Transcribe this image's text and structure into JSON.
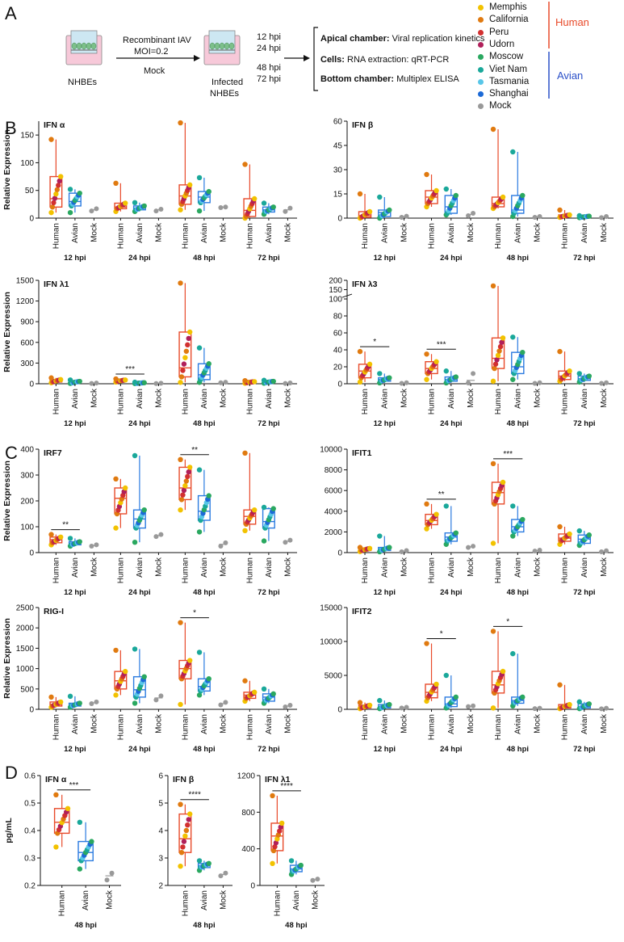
{
  "panel_labels": [
    "A",
    "B",
    "C",
    "D"
  ],
  "schematic": {
    "source_cells": "NHBEs",
    "treatment_line1": "Recombinant IAV",
    "treatment_line2": "MOI=0.2",
    "mock": "Mock",
    "infected_line1": "Infected",
    "infected_line2": "NHBEs",
    "timepoints": [
      "12 hpi",
      "24 hpi",
      "48 hpi",
      "72 hpi"
    ],
    "readouts": [
      {
        "head": "Apical chamber:",
        "text": "Viral replication kinetics"
      },
      {
        "head": "Cells:",
        "text": "RNA extraction: qRT-PCR"
      },
      {
        "head": "Bottom chamber:",
        "text": "Multiplex ELISA"
      }
    ]
  },
  "legend": {
    "strains": [
      {
        "name": "Memphis",
        "color": "#f2c200"
      },
      {
        "name": "California",
        "color": "#e07a10"
      },
      {
        "name": "Peru",
        "color": "#d23030"
      },
      {
        "name": "Udorn",
        "color": "#b0205a"
      },
      {
        "name": "Moscow",
        "color": "#2aa860"
      },
      {
        "name": "Viet Nam",
        "color": "#1aa89a"
      },
      {
        "name": "Tasmania",
        "color": "#58c6e8"
      },
      {
        "name": "Shanghai",
        "color": "#1c6ad6"
      },
      {
        "name": "Mock",
        "color": "#999999"
      }
    ],
    "group_human": "Human",
    "group_avian": "Avian",
    "human_color": "#e84a2a",
    "avian_color": "#2b50c8"
  },
  "colors": {
    "human_box": "#e84a2a",
    "avian_box": "#2b7be0",
    "mock": "#999999"
  },
  "chart_data": [
    {
      "id": "B1",
      "type": "box",
      "title": "IFN α",
      "ylabel": "Relative Expression",
      "ylim": [
        0,
        175
      ],
      "yticks": [
        0,
        50,
        100,
        150
      ],
      "groups": [
        "Human",
        "Avian",
        "Mock"
      ],
      "timepoints": [
        "12 hpi",
        "24 hpi",
        "48 hpi",
        "72 hpi"
      ],
      "boxes": [
        [
          [
            10,
            20,
            35,
            75,
            142
          ],
          [
            10,
            22,
            30,
            45,
            52
          ],
          [
            13,
            14,
            15,
            16,
            17
          ]
        ],
        [
          [
            12,
            17,
            20,
            27,
            63
          ],
          [
            12,
            15,
            18,
            22,
            28
          ],
          [
            13,
            14,
            15,
            15,
            16
          ]
        ],
        [
          [
            15,
            25,
            40,
            60,
            172
          ],
          [
            13,
            28,
            38,
            48,
            73
          ],
          [
            19,
            19,
            20,
            20,
            20
          ]
        ],
        [
          [
            0,
            3,
            14,
            35,
            97
          ],
          [
            7,
            11,
            15,
            20,
            27
          ],
          [
            12,
            13,
            15,
            16,
            18
          ]
        ]
      ],
      "sig": []
    },
    {
      "id": "B2",
      "type": "box",
      "title": "IFN β",
      "ylabel": "",
      "ylim": [
        0,
        60
      ],
      "yticks": [
        0,
        15,
        30,
        45,
        60
      ],
      "groups": [
        "Human",
        "Avian",
        "Mock"
      ],
      "timepoints": [
        "12 hpi",
        "24 hpi",
        "48 hpi",
        "72 hpi"
      ],
      "boxes": [
        [
          [
            0,
            0.5,
            1.5,
            4,
            15
          ],
          [
            0,
            1,
            3.5,
            5,
            13
          ],
          [
            0.5,
            0.6,
            0.8,
            1,
            1.2
          ]
        ],
        [
          [
            7,
            9,
            13,
            17,
            27
          ],
          [
            2,
            3,
            7,
            14,
            18
          ],
          [
            1.5,
            1.8,
            2.3,
            2.8,
            3
          ]
        ],
        [
          [
            6,
            7,
            9,
            13,
            55
          ],
          [
            1,
            3,
            5,
            14,
            41
          ],
          [
            0.5,
            0.6,
            0.8,
            1,
            1
          ]
        ],
        [
          [
            0.5,
            0.8,
            1.5,
            2,
            5
          ],
          [
            0.3,
            0.5,
            1,
            1.2,
            1.5
          ],
          [
            0.3,
            0.4,
            0.6,
            0.8,
            1
          ]
        ]
      ],
      "sig": []
    },
    {
      "id": "B3",
      "type": "box",
      "title": "IFN λ1",
      "ylabel": "Relative Expression",
      "ylim": [
        0,
        1500
      ],
      "yticks": [
        0,
        300,
        600,
        900,
        1200,
        1500
      ],
      "groups": [
        "Human",
        "Avian",
        "Mock"
      ],
      "timepoints": [
        "12 hpi",
        "24 hpi",
        "48 hpi",
        "72 hpi"
      ],
      "boxes": [
        [
          [
            15,
            25,
            40,
            60,
            85
          ],
          [
            5,
            12,
            22,
            35,
            55
          ],
          [
            4,
            5,
            7,
            9,
            10
          ]
        ],
        [
          [
            25,
            35,
            45,
            55,
            70
          ],
          [
            3,
            5,
            10,
            15,
            22
          ],
          [
            3,
            4,
            5,
            6,
            7
          ]
        ],
        [
          [
            20,
            100,
            230,
            750,
            1460
          ],
          [
            20,
            60,
            130,
            290,
            520
          ],
          [
            15,
            16,
            18,
            20,
            22
          ]
        ],
        [
          [
            8,
            15,
            22,
            30,
            45
          ],
          [
            8,
            15,
            25,
            35,
            50
          ],
          [
            5,
            6,
            8,
            10,
            12
          ]
        ]
      ],
      "sig": [
        {
          "tp": 1,
          "label": "***"
        }
      ]
    },
    {
      "id": "B4",
      "type": "box",
      "title": "IFN λ3",
      "ylabel": "",
      "ylim": [
        0,
        100
      ],
      "yticks": [
        0,
        20,
        40,
        60,
        80,
        100
      ],
      "extra_ticks": [
        150,
        200
      ],
      "groups": [
        "Human",
        "Avian",
        "Mock"
      ],
      "timepoints": [
        "12 hpi",
        "24 hpi",
        "48 hpi",
        "72 hpi"
      ],
      "boxes": [
        [
          [
            2,
            7,
            15,
            23,
            38
          ],
          [
            1,
            3,
            5,
            7,
            12
          ],
          [
            0.5,
            0.6,
            0.8,
            1,
            1.2
          ]
        ],
        [
          [
            5,
            12,
            18,
            26,
            35
          ],
          [
            1,
            3,
            5,
            8,
            15
          ],
          [
            1,
            2,
            4,
            8,
            12
          ]
        ],
        [
          [
            3,
            18,
            30,
            54,
            170
          ],
          [
            5,
            12,
            20,
            37,
            55
          ],
          [
            0.5,
            0.6,
            0.8,
            1,
            1.2
          ]
        ],
        [
          [
            3,
            5,
            9,
            15,
            38
          ],
          [
            2,
            4,
            6,
            9,
            12
          ],
          [
            0.5,
            0.6,
            0.8,
            1,
            1.2
          ]
        ]
      ],
      "sig": [
        {
          "tp": 0,
          "label": "*"
        },
        {
          "tp": 1,
          "label": "***"
        }
      ]
    },
    {
      "id": "C1",
      "type": "box",
      "title": "IRF7",
      "ylabel": "Relative Expression",
      "ylim": [
        0,
        400
      ],
      "yticks": [
        0,
        100,
        200,
        300,
        400
      ],
      "groups": [
        "Human",
        "Avian",
        "Mock"
      ],
      "timepoints": [
        "12 hpi",
        "24 hpi",
        "48 hpi",
        "72 hpi"
      ],
      "boxes": [
        [
          [
            30,
            38,
            50,
            60,
            70
          ],
          [
            25,
            30,
            36,
            42,
            55
          ],
          [
            25,
            26,
            27,
            28,
            30
          ]
        ],
        [
          [
            95,
            150,
            210,
            250,
            285
          ],
          [
            40,
            95,
            130,
            165,
            375
          ],
          [
            62,
            64,
            66,
            68,
            70
          ]
        ],
        [
          [
            165,
            205,
            250,
            330,
            360
          ],
          [
            80,
            125,
            160,
            220,
            320
          ],
          [
            25,
            28,
            32,
            36,
            38
          ]
        ],
        [
          [
            85,
            110,
            140,
            165,
            385
          ],
          [
            45,
            95,
            120,
            170,
            175
          ],
          [
            40,
            42,
            44,
            46,
            48
          ]
        ]
      ],
      "sig": [
        {
          "tp": 0,
          "label": "**"
        },
        {
          "tp": 2,
          "label": "**"
        }
      ]
    },
    {
      "id": "C2",
      "type": "box",
      "title": "IFIT1",
      "ylabel": "",
      "ylim": [
        0,
        10000
      ],
      "yticks": [
        0,
        2000,
        4000,
        6000,
        8000,
        10000
      ],
      "groups": [
        "Human",
        "Avian",
        "Mock"
      ],
      "timepoints": [
        "12 hpi",
        "24 hpi",
        "48 hpi",
        "72 hpi"
      ],
      "boxes": [
        [
          [
            100,
            200,
            300,
            400,
            500
          ],
          [
            80,
            200,
            350,
            500,
            1600
          ],
          [
            80,
            100,
            130,
            160,
            200
          ]
        ],
        [
          [
            2300,
            2700,
            3100,
            3700,
            4700
          ],
          [
            800,
            1100,
            1500,
            1900,
            4500
          ],
          [
            500,
            520,
            560,
            600,
            620
          ]
        ],
        [
          [
            900,
            4700,
            5800,
            6800,
            8600
          ],
          [
            1600,
            2000,
            2500,
            3200,
            4500
          ],
          [
            150,
            170,
            190,
            210,
            230
          ]
        ],
        [
          [
            800,
            1100,
            1400,
            1800,
            2500
          ],
          [
            700,
            900,
            1300,
            1700,
            2100
          ],
          [
            80,
            100,
            130,
            160,
            180
          ]
        ]
      ],
      "sig": [
        {
          "tp": 1,
          "label": "**"
        },
        {
          "tp": 2,
          "label": "***"
        }
      ]
    },
    {
      "id": "C3",
      "type": "box",
      "title": "RIG-I",
      "ylabel": "Relative Expression",
      "ylim": [
        0,
        2500
      ],
      "yticks": [
        0,
        500,
        1000,
        1500,
        2000,
        2500
      ],
      "groups": [
        "Human",
        "Avian",
        "Mock"
      ],
      "timepoints": [
        "12 hpi",
        "24 hpi",
        "48 hpi",
        "72 hpi"
      ],
      "boxes": [
        [
          [
            50,
            80,
            120,
            180,
            300
          ],
          [
            50,
            80,
            110,
            150,
            320
          ],
          [
            140,
            150,
            160,
            170,
            180
          ]
        ],
        [
          [
            350,
            500,
            700,
            930,
            1450
          ],
          [
            150,
            300,
            480,
            800,
            1480
          ],
          [
            230,
            250,
            280,
            310,
            330
          ]
        ],
        [
          [
            120,
            750,
            1000,
            1200,
            2130
          ],
          [
            350,
            450,
            560,
            750,
            1400
          ],
          [
            110,
            120,
            140,
            150,
            170
          ]
        ],
        [
          [
            200,
            270,
            350,
            420,
            700
          ],
          [
            150,
            200,
            300,
            380,
            500
          ],
          [
            60,
            70,
            80,
            90,
            100
          ]
        ]
      ],
      "sig": [
        {
          "tp": 2,
          "label": "*"
        }
      ]
    },
    {
      "id": "C4",
      "type": "box",
      "title": "IFIT2",
      "ylabel": "",
      "ylim": [
        0,
        15000
      ],
      "yticks": [
        0,
        5000,
        10000,
        15000
      ],
      "groups": [
        "Human",
        "Avian",
        "Mock"
      ],
      "timepoints": [
        "12 hpi",
        "24 hpi",
        "48 hpi",
        "72 hpi"
      ],
      "boxes": [
        [
          [
            100,
            200,
            400,
            600,
            1000
          ],
          [
            100,
            200,
            400,
            700,
            1300
          ],
          [
            200,
            220,
            250,
            280,
            300
          ]
        ],
        [
          [
            1200,
            1700,
            2500,
            3700,
            9700
          ],
          [
            200,
            400,
            800,
            1800,
            5000
          ],
          [
            400,
            420,
            450,
            480,
            500
          ]
        ],
        [
          [
            200,
            2400,
            3600,
            5600,
            11500
          ],
          [
            500,
            900,
            1300,
            1800,
            8200
          ],
          [
            100,
            110,
            130,
            150,
            160
          ]
        ],
        [
          [
            100,
            200,
            400,
            700,
            3600
          ],
          [
            100,
            200,
            400,
            800,
            1100
          ],
          [
            80,
            100,
            120,
            140,
            160
          ]
        ]
      ],
      "sig": [
        {
          "tp": 1,
          "label": "*"
        },
        {
          "tp": 2,
          "label": "*"
        }
      ]
    },
    {
      "id": "D1",
      "type": "box",
      "title": "IFN α",
      "ylabel": "pg/mL",
      "ylim": [
        0.2,
        0.6
      ],
      "yticks": [
        0.2,
        0.3,
        0.4,
        0.5,
        0.6
      ],
      "groups": [
        "Human",
        "Avian",
        "Mock"
      ],
      "timepoints": [
        "48 hpi"
      ],
      "boxes": [
        [
          [
            0.34,
            0.39,
            0.43,
            0.48,
            0.53
          ],
          [
            0.26,
            0.29,
            0.32,
            0.36,
            0.43
          ],
          [
            0.22,
            0.225,
            0.235,
            0.24,
            0.245
          ]
        ]
      ],
      "sig": [
        {
          "tp": 0,
          "label": "***"
        }
      ]
    },
    {
      "id": "D2",
      "type": "box",
      "title": "IFN β",
      "ylabel": "",
      "ylim": [
        2,
        6
      ],
      "yticks": [
        2,
        3,
        4,
        5,
        6
      ],
      "groups": [
        "Human",
        "Avian",
        "Mock"
      ],
      "timepoints": [
        "48 hpi"
      ],
      "boxes": [
        [
          [
            2.7,
            3.2,
            3.7,
            4.6,
            4.95
          ],
          [
            2.55,
            2.65,
            2.72,
            2.8,
            2.9
          ],
          [
            2.35,
            2.37,
            2.4,
            2.43,
            2.45
          ]
        ]
      ],
      "sig": [
        {
          "tp": 0,
          "label": "****"
        }
      ]
    },
    {
      "id": "D3",
      "type": "box",
      "title": "IFN λ1",
      "ylabel": "",
      "ylim": [
        0,
        1200
      ],
      "yticks": [
        0,
        400,
        800,
        1200
      ],
      "groups": [
        "Human",
        "Avian",
        "Mock"
      ],
      "timepoints": [
        "48 hpi"
      ],
      "boxes": [
        [
          [
            240,
            380,
            540,
            680,
            980
          ],
          [
            120,
            150,
            180,
            220,
            270
          ],
          [
            55,
            58,
            62,
            66,
            70
          ]
        ]
      ],
      "sig": [
        {
          "tp": 0,
          "label": "****"
        }
      ]
    }
  ]
}
